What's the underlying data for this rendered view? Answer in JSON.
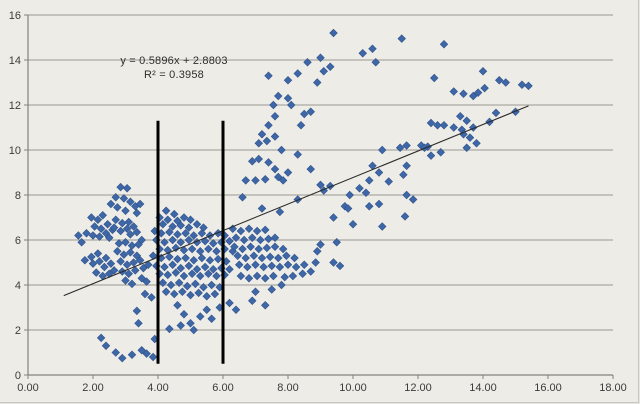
{
  "chart_data": {
    "type": "scatter",
    "title": "",
    "xlabel": "",
    "ylabel": "",
    "legend": "none",
    "grid": "horizontal-only",
    "x_axis": {
      "min": 0,
      "max": 18,
      "step": 2,
      "tick_labels": [
        "0.00",
        "2.00",
        "4.00",
        "6.00",
        "8.00",
        "10.00",
        "12.00",
        "14.00",
        "16.00",
        "18.00"
      ]
    },
    "y_axis": {
      "min": 0,
      "max": 16,
      "step": 2,
      "tick_labels": [
        "0",
        "2",
        "4",
        "6",
        "8",
        "10",
        "12",
        "14",
        "16"
      ]
    },
    "trendline": {
      "equation": "y = 0.5896x + 2.8803",
      "r_squared": "R² = 0.3958",
      "slope": 0.5896,
      "intercept": 2.8803,
      "x_start": 1.1,
      "x_end": 15.4
    },
    "vertical_marker_lines": [
      {
        "x": 4.0,
        "y_top": 11.3,
        "y_bottom": 0.5
      },
      {
        "x": 6.0,
        "y_top": 11.3,
        "y_bottom": 0.5
      }
    ],
    "colors": {
      "marker": "#3E67A7",
      "marker_edge": "#31538C",
      "trendline": "#2b2b2b",
      "vertical_line": "#000000",
      "gridline": "#9b9891",
      "axis": "#85827d",
      "tick_text": "#3b3b3b",
      "background": "#EEECE6"
    },
    "points": [
      [
        1.55,
        6.2
      ],
      [
        1.65,
        5.9
      ],
      [
        1.75,
        5.1
      ],
      [
        1.8,
        6.3
      ],
      [
        1.95,
        7.0
      ],
      [
        1.95,
        5.25
      ],
      [
        2.0,
        6.2
      ],
      [
        2.0,
        4.95
      ],
      [
        2.05,
        6.6
      ],
      [
        2.1,
        4.55
      ],
      [
        2.15,
        6.9
      ],
      [
        2.15,
        5.4
      ],
      [
        2.2,
        6.15
      ],
      [
        2.2,
        5.05
      ],
      [
        2.25,
        6.5
      ],
      [
        2.3,
        7.1
      ],
      [
        2.3,
        4.4
      ],
      [
        2.35,
        4.8
      ],
      [
        2.4,
        6.3
      ],
      [
        2.4,
        5.2
      ],
      [
        2.45,
        6.7
      ],
      [
        2.5,
        6.1
      ],
      [
        2.5,
        4.5
      ],
      [
        2.55,
        7.6
      ],
      [
        2.55,
        4.95
      ],
      [
        2.6,
        6.45
      ],
      [
        2.65,
        4.65
      ],
      [
        2.65,
        6.55
      ],
      [
        2.7,
        7.9
      ],
      [
        2.7,
        6.9
      ],
      [
        2.75,
        7.45
      ],
      [
        2.75,
        5.5
      ],
      [
        2.8,
        5.85
      ],
      [
        2.85,
        8.35
      ],
      [
        2.85,
        6.4
      ],
      [
        2.85,
        5.05
      ],
      [
        2.9,
        6.75
      ],
      [
        2.9,
        4.6
      ],
      [
        2.95,
        7.85
      ],
      [
        2.95,
        5.35
      ],
      [
        3.0,
        7.3
      ],
      [
        3.0,
        5.9
      ],
      [
        3.0,
        4.2
      ],
      [
        3.05,
        8.3
      ],
      [
        3.05,
        6.5
      ],
      [
        3.05,
        4.9
      ],
      [
        3.1,
        6.8
      ],
      [
        3.1,
        4.5
      ],
      [
        3.15,
        7.7
      ],
      [
        3.15,
        6.25
      ],
      [
        3.15,
        5.45
      ],
      [
        3.2,
        5.75
      ],
      [
        3.2,
        4.05
      ],
      [
        3.25,
        6.6
      ],
      [
        3.25,
        5.0
      ],
      [
        3.3,
        7.5
      ],
      [
        3.3,
        4.65
      ],
      [
        3.35,
        7.2
      ],
      [
        3.35,
        6.35
      ],
      [
        3.35,
        5.3
      ],
      [
        3.4,
        5.8
      ],
      [
        3.45,
        7.6
      ],
      [
        3.45,
        5.1
      ],
      [
        3.5,
        6.0
      ],
      [
        3.5,
        4.3
      ],
      [
        3.55,
        4.75
      ],
      [
        3.6,
        3.6
      ],
      [
        3.65,
        4.15
      ],
      [
        3.7,
        4.9
      ],
      [
        3.8,
        3.45
      ],
      [
        2.25,
        1.65
      ],
      [
        2.4,
        1.3
      ],
      [
        2.7,
        1.0
      ],
      [
        2.9,
        0.75
      ],
      [
        3.2,
        0.9
      ],
      [
        3.5,
        1.1
      ],
      [
        3.65,
        0.95
      ],
      [
        3.85,
        0.8
      ],
      [
        3.9,
        1.6
      ],
      [
        3.35,
        2.85
      ],
      [
        3.4,
        2.3
      ],
      [
        4.35,
        2.05
      ],
      [
        4.7,
        2.2
      ],
      [
        4.25,
        7.3
      ],
      [
        4.5,
        7.15
      ],
      [
        4.05,
        7.0
      ],
      [
        4.3,
        6.9
      ],
      [
        4.6,
        6.85
      ],
      [
        4.8,
        7.0
      ],
      [
        5.0,
        6.9
      ],
      [
        4.15,
        6.7
      ],
      [
        4.45,
        6.6
      ],
      [
        4.7,
        6.65
      ],
      [
        4.95,
        6.55
      ],
      [
        5.2,
        6.7
      ],
      [
        5.4,
        6.55
      ],
      [
        3.9,
        6.4
      ],
      [
        4.1,
        6.3
      ],
      [
        4.35,
        6.35
      ],
      [
        4.6,
        6.25
      ],
      [
        4.85,
        6.3
      ],
      [
        5.1,
        6.2
      ],
      [
        5.35,
        6.3
      ],
      [
        5.6,
        6.2
      ],
      [
        5.85,
        6.3
      ],
      [
        6.05,
        6.2
      ],
      [
        3.95,
        6.0
      ],
      [
        4.2,
        5.9
      ],
      [
        4.45,
        6.0
      ],
      [
        4.7,
        5.9
      ],
      [
        4.95,
        6.0
      ],
      [
        5.2,
        5.9
      ],
      [
        5.45,
        5.95
      ],
      [
        5.7,
        5.85
      ],
      [
        5.95,
        5.9
      ],
      [
        6.2,
        5.95
      ],
      [
        4.05,
        5.6
      ],
      [
        4.3,
        5.55
      ],
      [
        4.55,
        5.65
      ],
      [
        4.8,
        5.55
      ],
      [
        5.05,
        5.6
      ],
      [
        5.3,
        5.5
      ],
      [
        5.55,
        5.6
      ],
      [
        5.8,
        5.5
      ],
      [
        6.05,
        5.6
      ],
      [
        6.3,
        5.5
      ],
      [
        3.85,
        5.3
      ],
      [
        4.1,
        5.2
      ],
      [
        4.35,
        5.25
      ],
      [
        4.6,
        5.15
      ],
      [
        4.85,
        5.2
      ],
      [
        5.1,
        5.1
      ],
      [
        5.35,
        5.2
      ],
      [
        5.6,
        5.1
      ],
      [
        5.85,
        5.15
      ],
      [
        6.1,
        5.05
      ],
      [
        3.95,
        4.85
      ],
      [
        4.2,
        4.8
      ],
      [
        4.45,
        4.9
      ],
      [
        4.7,
        4.75
      ],
      [
        4.95,
        4.85
      ],
      [
        5.2,
        4.7
      ],
      [
        5.45,
        4.8
      ],
      [
        5.7,
        4.7
      ],
      [
        5.95,
        4.75
      ],
      [
        6.2,
        4.7
      ],
      [
        4.05,
        4.5
      ],
      [
        4.3,
        4.45
      ],
      [
        4.55,
        4.55
      ],
      [
        4.8,
        4.4
      ],
      [
        5.05,
        4.5
      ],
      [
        5.3,
        4.4
      ],
      [
        5.55,
        4.5
      ],
      [
        5.8,
        4.4
      ],
      [
        6.05,
        4.45
      ],
      [
        4.15,
        4.1
      ],
      [
        4.4,
        4.0
      ],
      [
        4.65,
        4.1
      ],
      [
        4.9,
        3.95
      ],
      [
        5.15,
        4.05
      ],
      [
        5.4,
        3.9
      ],
      [
        5.65,
        4.0
      ],
      [
        5.9,
        3.9
      ],
      [
        4.25,
        3.7
      ],
      [
        4.5,
        3.6
      ],
      [
        4.75,
        3.7
      ],
      [
        5.0,
        3.55
      ],
      [
        5.25,
        3.65
      ],
      [
        5.5,
        3.5
      ],
      [
        5.75,
        3.6
      ],
      [
        4.6,
        3.1
      ],
      [
        4.8,
        2.7
      ],
      [
        5.0,
        2.3
      ],
      [
        5.1,
        2.0
      ],
      [
        5.3,
        2.6
      ],
      [
        5.5,
        2.9
      ],
      [
        5.65,
        2.5
      ],
      [
        5.9,
        3.0
      ],
      [
        6.2,
        3.2
      ],
      [
        6.4,
        2.9
      ],
      [
        6.3,
        6.5
      ],
      [
        6.55,
        6.4
      ],
      [
        6.8,
        6.5
      ],
      [
        7.05,
        6.4
      ],
      [
        7.3,
        6.45
      ],
      [
        6.4,
        6.1
      ],
      [
        6.65,
        6.0
      ],
      [
        6.9,
        6.1
      ],
      [
        7.15,
        6.0
      ],
      [
        7.4,
        6.05
      ],
      [
        7.6,
        6.1
      ],
      [
        6.35,
        5.7
      ],
      [
        6.6,
        5.6
      ],
      [
        6.85,
        5.7
      ],
      [
        7.1,
        5.6
      ],
      [
        7.35,
        5.65
      ],
      [
        7.6,
        5.7
      ],
      [
        7.85,
        5.6
      ],
      [
        6.45,
        5.3
      ],
      [
        6.7,
        5.2
      ],
      [
        6.95,
        5.3
      ],
      [
        7.2,
        5.2
      ],
      [
        7.45,
        5.25
      ],
      [
        7.7,
        5.2
      ],
      [
        7.95,
        5.3
      ],
      [
        8.2,
        5.2
      ],
      [
        6.5,
        4.9
      ],
      [
        6.75,
        4.8
      ],
      [
        7.0,
        4.9
      ],
      [
        7.25,
        4.8
      ],
      [
        7.5,
        4.85
      ],
      [
        7.75,
        4.8
      ],
      [
        8.0,
        4.9
      ],
      [
        8.25,
        4.8
      ],
      [
        8.5,
        4.9
      ],
      [
        6.55,
        4.4
      ],
      [
        6.8,
        4.3
      ],
      [
        7.05,
        4.4
      ],
      [
        7.3,
        4.3
      ],
      [
        7.55,
        4.4
      ],
      [
        7.9,
        4.35
      ],
      [
        8.15,
        4.4
      ],
      [
        8.45,
        4.5
      ],
      [
        8.7,
        4.6
      ],
      [
        8.85,
        5.0
      ],
      [
        8.9,
        5.5
      ],
      [
        9.0,
        5.8
      ],
      [
        6.9,
        3.3
      ],
      [
        7.3,
        3.1
      ],
      [
        7.0,
        3.7
      ],
      [
        7.5,
        3.8
      ],
      [
        7.8,
        4.0
      ],
      [
        9.5,
        5.9
      ],
      [
        9.4,
        5.0
      ],
      [
        9.6,
        4.85
      ],
      [
        6.6,
        7.9
      ],
      [
        6.7,
        8.65
      ],
      [
        7.0,
        8.65
      ],
      [
        7.3,
        8.7
      ],
      [
        7.85,
        8.65
      ],
      [
        7.2,
        7.4
      ],
      [
        7.75,
        7.25
      ],
      [
        8.3,
        7.8
      ],
      [
        9.1,
        8.2
      ],
      [
        6.9,
        9.5
      ],
      [
        7.1,
        9.6
      ],
      [
        7.4,
        9.45
      ],
      [
        7.6,
        9.15
      ],
      [
        8.0,
        9.0
      ],
      [
        7.7,
        8.8
      ],
      [
        8.7,
        9.15
      ],
      [
        9.0,
        8.45
      ],
      [
        7.8,
        10.0
      ],
      [
        8.3,
        9.8
      ],
      [
        7.1,
        10.3
      ],
      [
        7.35,
        10.4
      ],
      [
        7.2,
        10.7
      ],
      [
        7.6,
        10.6
      ],
      [
        7.4,
        11.1
      ],
      [
        8.4,
        11.1
      ],
      [
        7.6,
        11.5
      ],
      [
        8.5,
        11.6
      ],
      [
        8.7,
        11.7
      ],
      [
        7.55,
        12.0
      ],
      [
        8.1,
        12.0
      ],
      [
        7.7,
        12.4
      ],
      [
        8.0,
        12.3
      ],
      [
        7.4,
        13.3
      ],
      [
        8.0,
        13.1
      ],
      [
        8.3,
        13.4
      ],
      [
        8.9,
        13.0
      ],
      [
        9.1,
        13.5
      ],
      [
        9.3,
        13.7
      ],
      [
        8.6,
        13.9
      ],
      [
        9.0,
        14.1
      ],
      [
        9.4,
        15.2
      ],
      [
        10.3,
        14.3
      ],
      [
        10.6,
        14.5
      ],
      [
        10.7,
        13.9
      ],
      [
        11.5,
        14.95
      ],
      [
        12.8,
        14.7
      ],
      [
        12.5,
        13.2
      ],
      [
        14.0,
        13.5
      ],
      [
        13.1,
        12.6
      ],
      [
        13.4,
        12.5
      ],
      [
        13.7,
        12.4
      ],
      [
        13.85,
        12.55
      ],
      [
        14.05,
        12.75
      ],
      [
        14.5,
        13.1
      ],
      [
        14.7,
        13.0
      ],
      [
        15.2,
        12.9
      ],
      [
        15.4,
        12.85
      ],
      [
        12.4,
        11.2
      ],
      [
        12.6,
        11.1
      ],
      [
        12.8,
        11.1
      ],
      [
        13.1,
        11.0
      ],
      [
        13.3,
        11.5
      ],
      [
        13.5,
        11.3
      ],
      [
        13.35,
        10.9
      ],
      [
        13.7,
        11.0
      ],
      [
        13.4,
        10.7
      ],
      [
        13.6,
        10.55
      ],
      [
        14.2,
        11.25
      ],
      [
        14.4,
        11.65
      ],
      [
        15.0,
        11.7
      ],
      [
        13.5,
        10.1
      ],
      [
        12.3,
        10.15
      ],
      [
        12.4,
        9.75
      ],
      [
        12.7,
        9.9
      ],
      [
        12.1,
        10.2
      ],
      [
        13.8,
        10.3
      ],
      [
        10.9,
        10.0
      ],
      [
        11.45,
        10.1
      ],
      [
        11.65,
        10.2
      ],
      [
        12.2,
        10.1
      ],
      [
        10.6,
        9.3
      ],
      [
        10.8,
        9.0
      ],
      [
        11.65,
        9.3
      ],
      [
        10.5,
        8.65
      ],
      [
        11.1,
        8.6
      ],
      [
        11.55,
        8.9
      ],
      [
        10.2,
        8.3
      ],
      [
        10.4,
        8.1
      ],
      [
        9.9,
        8.0
      ],
      [
        11.65,
        8.0
      ],
      [
        11.85,
        7.8
      ],
      [
        9.75,
        7.5
      ],
      [
        10.8,
        7.6
      ],
      [
        10.5,
        7.5
      ],
      [
        9.85,
        7.4
      ],
      [
        9.3,
        8.4
      ],
      [
        9.4,
        7.0
      ],
      [
        10.0,
        6.7
      ],
      [
        10.9,
        6.6
      ],
      [
        11.6,
        7.05
      ]
    ]
  }
}
